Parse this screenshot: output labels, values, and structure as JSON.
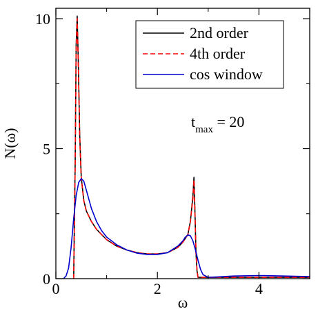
{
  "chart_data": {
    "type": "line",
    "xlabel": "ω",
    "ylabel": "N(ω)",
    "xlim": [
      0,
      5
    ],
    "ylim": [
      0,
      10.4
    ],
    "x_ticks": [
      0,
      2,
      4
    ],
    "y_ticks": [
      0,
      5,
      10
    ],
    "grid": false,
    "legend_placement": "top-right",
    "annotation": {
      "main": "t",
      "sub": "max",
      "rest": " = 20"
    },
    "series": [
      {
        "name": "2nd order",
        "color": "#000000",
        "dash": "solid",
        "x": [
          0.35,
          0.38,
          0.4,
          0.42,
          0.44,
          0.47,
          0.5,
          0.55,
          0.6,
          0.7,
          0.8,
          0.9,
          1.0,
          1.2,
          1.4,
          1.6,
          1.8,
          2.0,
          2.2,
          2.4,
          2.5,
          2.6,
          2.65,
          2.7,
          2.72,
          2.74,
          2.76,
          2.78,
          2.8,
          3.0,
          3.5,
          4.0,
          4.5,
          5.0
        ],
        "y": [
          0,
          4.5,
          9.0,
          10.1,
          8.5,
          5.5,
          3.9,
          3.0,
          2.6,
          2.2,
          1.9,
          1.7,
          1.5,
          1.25,
          1.1,
          1.0,
          0.95,
          0.95,
          1.0,
          1.2,
          1.4,
          1.7,
          2.2,
          3.2,
          3.9,
          2.5,
          1.0,
          0.3,
          0.05,
          0.05,
          0.05,
          0.05,
          0.05,
          0.05
        ]
      },
      {
        "name": "4th order",
        "color": "#ff0000",
        "dash": "dashed",
        "x": [
          0.35,
          0.38,
          0.4,
          0.42,
          0.44,
          0.47,
          0.5,
          0.55,
          0.6,
          0.7,
          0.8,
          0.9,
          1.0,
          1.2,
          1.4,
          1.6,
          1.8,
          2.0,
          2.2,
          2.4,
          2.5,
          2.6,
          2.65,
          2.7,
          2.72,
          2.74,
          2.76,
          2.78,
          2.8,
          3.0,
          3.5,
          4.0,
          4.5,
          5.0
        ],
        "y": [
          0,
          4.3,
          8.8,
          10.0,
          8.4,
          5.4,
          3.85,
          3.0,
          2.6,
          2.2,
          1.9,
          1.7,
          1.5,
          1.25,
          1.1,
          1.0,
          0.95,
          0.95,
          1.0,
          1.2,
          1.4,
          1.7,
          2.2,
          3.1,
          3.8,
          2.4,
          1.0,
          0.3,
          0.05,
          0.05,
          0.05,
          0.05,
          0.05,
          0.05
        ]
      },
      {
        "name": "cos window",
        "color": "#0000cc",
        "dash": "solid",
        "x": [
          0.15,
          0.2,
          0.25,
          0.3,
          0.35,
          0.4,
          0.45,
          0.5,
          0.55,
          0.6,
          0.7,
          0.8,
          0.9,
          1.0,
          1.2,
          1.4,
          1.6,
          1.8,
          2.0,
          2.2,
          2.4,
          2.5,
          2.55,
          2.6,
          2.65,
          2.7,
          2.75,
          2.8,
          2.85,
          2.9,
          3.0,
          3.2,
          3.5,
          4.0,
          4.5,
          5.0
        ],
        "y": [
          0.0,
          0.1,
          0.4,
          1.2,
          2.3,
          3.2,
          3.7,
          3.85,
          3.75,
          3.4,
          2.7,
          2.2,
          1.85,
          1.6,
          1.3,
          1.1,
          0.98,
          0.93,
          0.93,
          1.0,
          1.25,
          1.45,
          1.6,
          1.68,
          1.65,
          1.45,
          1.1,
          0.7,
          0.35,
          0.15,
          0.05,
          0.07,
          0.1,
          0.12,
          0.1,
          0.08
        ]
      }
    ]
  }
}
